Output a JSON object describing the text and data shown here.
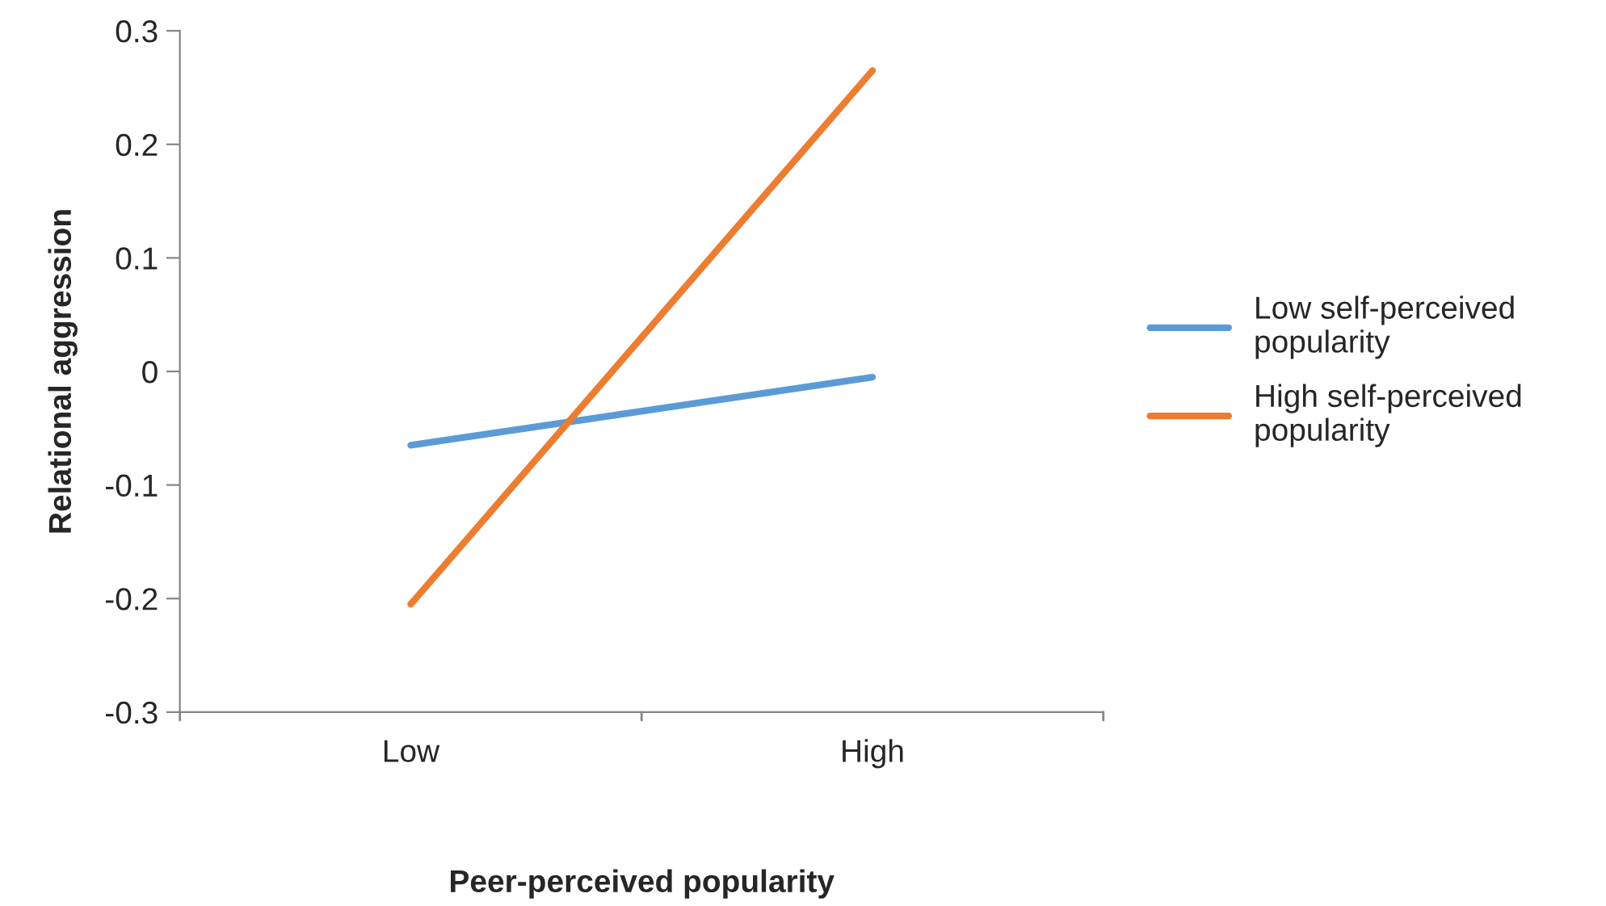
{
  "chart_data": {
    "type": "line",
    "xlabel": "Peer-perceived popularity",
    "ylabel": "Relational aggression",
    "categories": [
      "Low",
      "High"
    ],
    "series": [
      {
        "name": "Low self-perceived\npopularity",
        "color": "#5b9bd5",
        "values": [
          -0.065,
          -0.005
        ]
      },
      {
        "name": "High self-perceived\npopularity",
        "color": "#ed7d31",
        "values": [
          -0.205,
          0.265
        ]
      }
    ],
    "ylim": [
      -0.3,
      0.3
    ],
    "yticks": [
      -0.3,
      -0.2,
      -0.1,
      0,
      0.1,
      0.2,
      0.3
    ],
    "grid": false,
    "legend": "right",
    "marker": "none",
    "line_style": "solid"
  }
}
